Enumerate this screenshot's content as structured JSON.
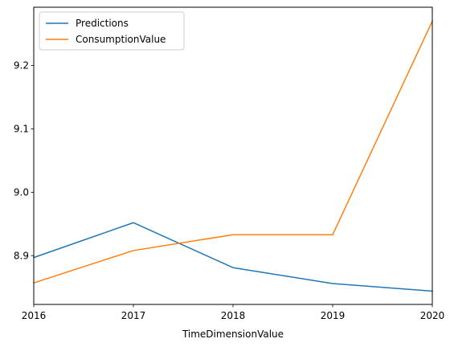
{
  "chart_data": {
    "type": "line",
    "title": "",
    "xlabel": "TimeDimensionValue",
    "ylabel": "",
    "x": [
      2016,
      2017,
      2018,
      2019,
      2020
    ],
    "x_ticks": [
      "2016",
      "2017",
      "2018",
      "2019",
      "2020"
    ],
    "y_ticks": [
      "8.9",
      "9.0",
      "9.1",
      "9.2"
    ],
    "xlim": [
      2016,
      2020
    ],
    "ylim": [
      8.823,
      9.292
    ],
    "grid": false,
    "legend_position": "upper-left",
    "series": [
      {
        "name": "Predictions",
        "color": "#1f77b4",
        "values": [
          8.897,
          8.952,
          8.881,
          8.856,
          8.844
        ]
      },
      {
        "name": "ConsumptionValue",
        "color": "#ff7f0e",
        "values": [
          8.857,
          8.908,
          8.933,
          8.933,
          9.27
        ]
      }
    ]
  }
}
